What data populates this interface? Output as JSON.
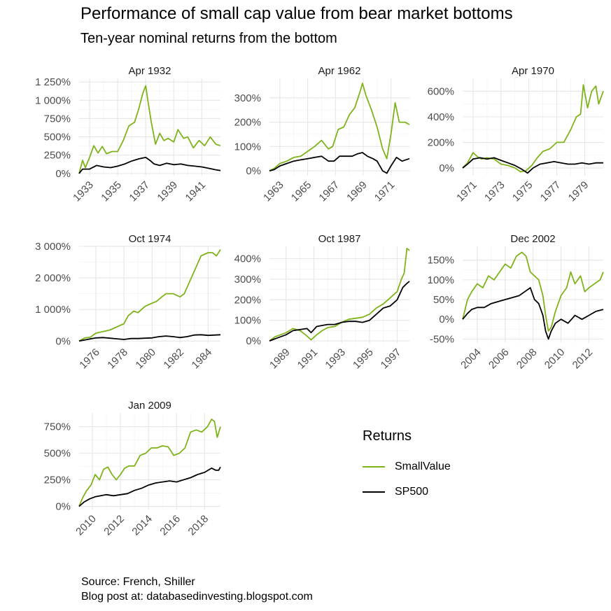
{
  "title": "Performance of small cap value from bear market bottoms",
  "subtitle": "Ten-year nominal returns from the bottom",
  "caption": [
    "Source: French, Shiller",
    "Blog post at: databasedinvesting.blogspot.com"
  ],
  "legend": {
    "title": "Returns",
    "items": [
      {
        "label": "SmallValue",
        "color": "#7fb31a"
      },
      {
        "label": "SP500",
        "color": "#000000"
      }
    ]
  },
  "chart_data": [
    {
      "type": "line",
      "title": "Apr 1932",
      "xlim": [
        1932.25,
        1942.33
      ],
      "ylim": [
        -30,
        1300
      ],
      "yticks": [
        0,
        250,
        500,
        750,
        1000,
        1250
      ],
      "ytick_labels": [
        "0%",
        "250%",
        "500%",
        "750%",
        "1 000%",
        "1 250%"
      ],
      "xticks": [
        1933,
        1935,
        1937,
        1939,
        1941
      ],
      "xtick_labels": [
        "1933",
        "1935",
        "1937",
        "1939",
        "1941"
      ],
      "series": [
        {
          "name": "SmallValue",
          "color": "#7fb31a",
          "x": [
            1932.25,
            1932.5,
            1932.7,
            1933.0,
            1933.3,
            1933.6,
            1933.9,
            1934.2,
            1934.6,
            1935.0,
            1935.4,
            1935.8,
            1936.2,
            1936.5,
            1936.8,
            1937.0,
            1937.15,
            1937.4,
            1937.7,
            1938.0,
            1938.3,
            1938.6,
            1939.0,
            1939.3,
            1939.7,
            1940.0,
            1940.4,
            1940.8,
            1941.2,
            1941.6,
            1942.0,
            1942.33
          ],
          "y": [
            0,
            180,
            80,
            220,
            380,
            280,
            370,
            270,
            300,
            300,
            450,
            650,
            700,
            880,
            1100,
            1200,
            1000,
            700,
            400,
            550,
            450,
            480,
            430,
            600,
            480,
            500,
            350,
            450,
            380,
            500,
            400,
            380
          ]
        },
        {
          "name": "SP500",
          "color": "#000000",
          "x": [
            1932.25,
            1932.5,
            1933.0,
            1933.5,
            1934.0,
            1934.5,
            1935.0,
            1935.5,
            1936.0,
            1936.5,
            1937.0,
            1937.3,
            1937.6,
            1938.0,
            1938.5,
            1939.0,
            1939.5,
            1940.0,
            1940.5,
            1941.0,
            1941.5,
            1942.0,
            1942.33
          ],
          "y": [
            0,
            60,
            60,
            110,
            90,
            80,
            100,
            130,
            170,
            200,
            220,
            180,
            130,
            110,
            140,
            120,
            130,
            110,
            100,
            90,
            70,
            50,
            40
          ]
        }
      ]
    },
    {
      "type": "line",
      "title": "Apr 1962",
      "xlim": [
        1962.25,
        1972.33
      ],
      "ylim": [
        -20,
        380
      ],
      "yticks": [
        0,
        100,
        200,
        300
      ],
      "ytick_labels": [
        "0%",
        "100%",
        "200%",
        "300%"
      ],
      "xticks": [
        1963,
        1965,
        1967,
        1969,
        1971
      ],
      "xtick_labels": [
        "1963",
        "1965",
        "1967",
        "1969",
        "1971"
      ],
      "series": [
        {
          "name": "SmallValue",
          "color": "#7fb31a",
          "x": [
            1962.25,
            1962.6,
            1963.0,
            1963.5,
            1964.0,
            1964.5,
            1965.0,
            1965.5,
            1966.0,
            1966.5,
            1966.8,
            1967.2,
            1967.6,
            1968.0,
            1968.4,
            1968.8,
            1968.95,
            1969.2,
            1969.6,
            1970.0,
            1970.4,
            1970.7,
            1971.0,
            1971.3,
            1971.6,
            1972.0,
            1972.33
          ],
          "y": [
            0,
            10,
            30,
            40,
            55,
            60,
            80,
            100,
            125,
            90,
            100,
            170,
            180,
            230,
            260,
            330,
            360,
            310,
            250,
            180,
            90,
            50,
            150,
            280,
            200,
            200,
            190
          ]
        },
        {
          "name": "SP500",
          "color": "#000000",
          "x": [
            1962.25,
            1962.6,
            1963.0,
            1963.5,
            1964.0,
            1964.5,
            1965.0,
            1965.5,
            1966.0,
            1966.5,
            1966.9,
            1967.3,
            1967.8,
            1968.2,
            1968.6,
            1968.95,
            1969.3,
            1969.7,
            1970.0,
            1970.4,
            1970.7,
            1971.0,
            1971.4,
            1971.8,
            1972.33
          ],
          "y": [
            0,
            5,
            20,
            30,
            40,
            45,
            50,
            55,
            60,
            40,
            40,
            60,
            60,
            60,
            70,
            75,
            60,
            50,
            40,
            0,
            -10,
            20,
            55,
            40,
            50
          ]
        }
      ]
    },
    {
      "type": "line",
      "title": "Apr 1970",
      "xlim": [
        1970.25,
        1980.33
      ],
      "ylim": [
        -60,
        700
      ],
      "yticks": [
        0,
        200,
        400,
        600
      ],
      "ytick_labels": [
        "0%",
        "200%",
        "400%",
        "600%"
      ],
      "xticks": [
        1971,
        1973,
        1975,
        1977,
        1979
      ],
      "xtick_labels": [
        "1971",
        "1973",
        "1975",
        "1977",
        "1979"
      ],
      "series": [
        {
          "name": "SmallValue",
          "color": "#7fb31a",
          "x": [
            1970.25,
            1970.6,
            1971.0,
            1971.3,
            1971.6,
            1972.0,
            1972.5,
            1973.0,
            1973.5,
            1974.0,
            1974.4,
            1974.8,
            1975.2,
            1975.6,
            1976.0,
            1976.5,
            1977.0,
            1977.5,
            1978.0,
            1978.4,
            1978.7,
            1978.9,
            1979.2,
            1979.5,
            1979.8,
            1980.0,
            1980.33
          ],
          "y": [
            0,
            40,
            120,
            90,
            70,
            80,
            70,
            30,
            20,
            0,
            -30,
            -20,
            20,
            80,
            130,
            150,
            200,
            200,
            300,
            400,
            420,
            650,
            470,
            600,
            640,
            500,
            600
          ]
        },
        {
          "name": "SP500",
          "color": "#000000",
          "x": [
            1970.25,
            1970.6,
            1971.0,
            1971.5,
            1972.0,
            1972.5,
            1973.0,
            1973.5,
            1974.0,
            1974.5,
            1974.9,
            1975.3,
            1975.8,
            1976.3,
            1976.8,
            1977.3,
            1977.8,
            1978.3,
            1978.8,
            1979.3,
            1979.8,
            1980.33
          ],
          "y": [
            0,
            30,
            70,
            80,
            70,
            80,
            60,
            40,
            20,
            -10,
            -40,
            0,
            30,
            40,
            50,
            40,
            30,
            30,
            40,
            30,
            40,
            40
          ]
        }
      ]
    },
    {
      "type": "line",
      "title": "Oct 1974",
      "xlim": [
        1974.8,
        1984.88
      ],
      "ylim": [
        -60,
        3000
      ],
      "yticks": [
        0,
        1000,
        2000,
        3000
      ],
      "ytick_labels": [
        "0%",
        "1 000%",
        "2 000%",
        "3 000%"
      ],
      "xticks": [
        1976,
        1978,
        1980,
        1982,
        1984
      ],
      "xtick_labels": [
        "1976",
        "1978",
        "1980",
        "1982",
        "1984"
      ],
      "series": [
        {
          "name": "SmallValue",
          "color": "#7fb31a",
          "x": [
            1974.8,
            1975.2,
            1975.6,
            1976.0,
            1976.5,
            1977.0,
            1977.5,
            1978.0,
            1978.3,
            1978.7,
            1979.0,
            1979.5,
            1980.0,
            1980.3,
            1980.7,
            1981.0,
            1981.5,
            1982.0,
            1982.3,
            1982.6,
            1983.0,
            1983.5,
            1984.0,
            1984.3,
            1984.6,
            1984.88
          ],
          "y": [
            0,
            100,
            120,
            250,
            300,
            350,
            450,
            550,
            800,
            950,
            900,
            1100,
            1200,
            1250,
            1400,
            1500,
            1500,
            1400,
            1500,
            1800,
            2200,
            2700,
            2800,
            2800,
            2700,
            2900
          ]
        },
        {
          "name": "SP500",
          "color": "#000000",
          "x": [
            1974.8,
            1975.5,
            1976.0,
            1976.5,
            1977.0,
            1977.5,
            1978.0,
            1978.5,
            1979.0,
            1979.5,
            1980.0,
            1980.5,
            1981.0,
            1981.5,
            1982.0,
            1982.5,
            1983.0,
            1983.5,
            1984.0,
            1984.5,
            1984.88
          ],
          "y": [
            0,
            60,
            100,
            110,
            90,
            70,
            50,
            80,
            80,
            90,
            100,
            140,
            160,
            140,
            110,
            140,
            190,
            200,
            180,
            190,
            200
          ]
        }
      ]
    },
    {
      "type": "line",
      "title": "Oct 1987",
      "xlim": [
        1987.8,
        1997.88
      ],
      "ylim": [
        -10,
        460
      ],
      "yticks": [
        0,
        100,
        200,
        300,
        400
      ],
      "ytick_labels": [
        "0%",
        "100%",
        "200%",
        "300%",
        "400%"
      ],
      "xticks": [
        1989,
        1991,
        1993,
        1995,
        1997
      ],
      "xtick_labels": [
        "1989",
        "1991",
        "1993",
        "1995",
        "1997"
      ],
      "series": [
        {
          "name": "SmallValue",
          "color": "#7fb31a",
          "x": [
            1987.8,
            1988.2,
            1988.6,
            1989.0,
            1989.5,
            1990.0,
            1990.4,
            1990.8,
            1991.2,
            1991.6,
            1992.0,
            1992.5,
            1993.0,
            1993.5,
            1994.0,
            1994.5,
            1995.0,
            1995.5,
            1996.0,
            1996.5,
            1997.0,
            1997.3,
            1997.5,
            1997.7,
            1997.88
          ],
          "y": [
            0,
            20,
            30,
            40,
            60,
            50,
            30,
            5,
            30,
            50,
            65,
            70,
            90,
            105,
            110,
            115,
            130,
            160,
            180,
            210,
            240,
            300,
            330,
            450,
            440
          ]
        },
        {
          "name": "SP500",
          "color": "#000000",
          "x": [
            1987.8,
            1988.2,
            1988.6,
            1989.0,
            1989.5,
            1990.0,
            1990.5,
            1990.8,
            1991.2,
            1991.6,
            1992.0,
            1992.5,
            1993.0,
            1993.5,
            1994.0,
            1994.5,
            1995.0,
            1995.5,
            1996.0,
            1996.5,
            1997.0,
            1997.4,
            1997.7,
            1997.88
          ],
          "y": [
            0,
            10,
            20,
            30,
            50,
            55,
            60,
            40,
            70,
            75,
            80,
            80,
            90,
            95,
            95,
            90,
            100,
            130,
            160,
            170,
            200,
            260,
            280,
            290
          ]
        }
      ]
    },
    {
      "type": "line",
      "title": "Dec 2002",
      "xlim": [
        2002.95,
        2013.03
      ],
      "ylim": [
        -60,
        185
      ],
      "yticks": [
        -50,
        0,
        50,
        100,
        150
      ],
      "ytick_labels": [
        "-50%",
        "0%",
        "50%",
        "100%",
        "150%"
      ],
      "xticks": [
        2004,
        2006,
        2008,
        2010,
        2012
      ],
      "xtick_labels": [
        "2004",
        "2006",
        "2008",
        "2010",
        "2012"
      ],
      "series": [
        {
          "name": "SmallValue",
          "color": "#7fb31a",
          "x": [
            2002.95,
            2003.3,
            2003.6,
            2004.0,
            2004.4,
            2004.8,
            2005.2,
            2005.6,
            2006.0,
            2006.4,
            2006.8,
            2007.2,
            2007.5,
            2007.8,
            2008.1,
            2008.4,
            2008.7,
            2008.9,
            2009.1,
            2009.3,
            2009.6,
            2010.0,
            2010.4,
            2010.7,
            2011.0,
            2011.4,
            2011.7,
            2012.0,
            2012.4,
            2012.8,
            2013.03
          ],
          "y": [
            0,
            50,
            70,
            90,
            80,
            110,
            100,
            120,
            140,
            130,
            160,
            170,
            160,
            120,
            110,
            100,
            60,
            10,
            -30,
            -20,
            20,
            60,
            80,
            120,
            90,
            110,
            70,
            80,
            90,
            100,
            120
          ]
        },
        {
          "name": "SP500",
          "color": "#000000",
          "x": [
            2002.95,
            2003.3,
            2003.6,
            2004.0,
            2004.5,
            2005.0,
            2005.5,
            2006.0,
            2006.5,
            2007.0,
            2007.4,
            2007.8,
            2008.1,
            2008.4,
            2008.7,
            2008.9,
            2009.1,
            2009.3,
            2009.6,
            2010.0,
            2010.5,
            2011.0,
            2011.5,
            2012.0,
            2012.5,
            2013.03
          ],
          "y": [
            0,
            15,
            25,
            30,
            30,
            40,
            45,
            50,
            55,
            60,
            70,
            80,
            50,
            40,
            10,
            -30,
            -50,
            -30,
            -10,
            0,
            -10,
            10,
            0,
            10,
            20,
            25
          ]
        }
      ]
    },
    {
      "type": "line",
      "title": "Jan 2009",
      "xlim": [
        2009.05,
        2019.13
      ],
      "ylim": [
        -30,
        880
      ],
      "yticks": [
        0,
        250,
        500,
        750
      ],
      "ytick_labels": [
        "0%",
        "250%",
        "500%",
        "750%"
      ],
      "xticks": [
        2010,
        2012,
        2014,
        2016,
        2018
      ],
      "xtick_labels": [
        "2010",
        "2012",
        "2014",
        "2016",
        "2018"
      ],
      "series": [
        {
          "name": "SmallValue",
          "color": "#7fb31a",
          "x": [
            2009.05,
            2009.3,
            2009.6,
            2009.9,
            2010.2,
            2010.5,
            2010.8,
            2011.1,
            2011.4,
            2011.7,
            2012.0,
            2012.3,
            2012.6,
            2013.0,
            2013.4,
            2013.8,
            2014.2,
            2014.6,
            2015.0,
            2015.4,
            2015.8,
            2016.2,
            2016.6,
            2017.0,
            2017.4,
            2017.8,
            2018.2,
            2018.5,
            2018.7,
            2018.9,
            2019.13
          ],
          "y": [
            0,
            80,
            150,
            200,
            300,
            250,
            350,
            370,
            300,
            250,
            300,
            360,
            380,
            380,
            480,
            500,
            550,
            550,
            570,
            560,
            480,
            500,
            550,
            700,
            720,
            700,
            750,
            820,
            800,
            650,
            750
          ]
        },
        {
          "name": "SP500",
          "color": "#000000",
          "x": [
            2009.05,
            2009.4,
            2009.8,
            2010.2,
            2010.6,
            2011.0,
            2011.5,
            2012.0,
            2012.5,
            2013.0,
            2013.5,
            2014.0,
            2014.5,
            2015.0,
            2015.5,
            2016.0,
            2016.5,
            2017.0,
            2017.5,
            2018.0,
            2018.5,
            2018.8,
            2019.0,
            2019.13
          ],
          "y": [
            0,
            40,
            70,
            90,
            100,
            110,
            100,
            110,
            120,
            150,
            170,
            200,
            220,
            230,
            240,
            230,
            250,
            270,
            300,
            320,
            360,
            340,
            340,
            370
          ]
        }
      ]
    }
  ]
}
